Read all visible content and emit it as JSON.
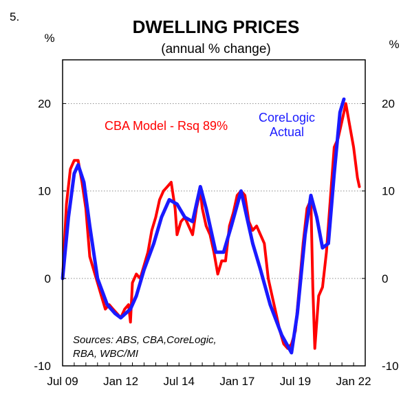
{
  "figure_number": "5.",
  "chart_data": {
    "type": "line",
    "title": "DWELLING PRICES",
    "subtitle": "(annual % change)",
    "ylabel_left": "%",
    "ylabel_right": "%",
    "x_range": [
      "2009-07",
      "2022-07"
    ],
    "ylim": [
      -10,
      25
    ],
    "y_ticks": [
      -10,
      0,
      10,
      20
    ],
    "x_ticks": [
      {
        "date": "2009-07",
        "label": "Jul 09"
      },
      {
        "date": "2012-01",
        "label": "Jan 12"
      },
      {
        "date": "2014-07",
        "label": "Jul 14"
      },
      {
        "date": "2017-01",
        "label": "Jan 17"
      },
      {
        "date": "2019-07",
        "label": "Jul 19"
      },
      {
        "date": "2022-01",
        "label": "Jan 22"
      }
    ],
    "grid": "horizontal dotted",
    "source_note_lines": [
      "Sources: ABS, CBA,CoreLogic,",
      "RBA, WBC/MI"
    ],
    "series": [
      {
        "name": "CBA Model - Rsq 89%",
        "label_lines": [
          "CBA Model - Rsq 89%"
        ],
        "color": "#ff0000",
        "points": [
          [
            "2009-07",
            0.0
          ],
          [
            "2009-09",
            8.5
          ],
          [
            "2009-11",
            12.5
          ],
          [
            "2010-01",
            13.5
          ],
          [
            "2010-03",
            13.5
          ],
          [
            "2010-05",
            11.0
          ],
          [
            "2010-07",
            8.0
          ],
          [
            "2010-09",
            2.5
          ],
          [
            "2010-11",
            1.0
          ],
          [
            "2011-01",
            -0.5
          ],
          [
            "2011-03",
            -2.0
          ],
          [
            "2011-05",
            -3.5
          ],
          [
            "2011-07",
            -3.0
          ],
          [
            "2011-09",
            -3.5
          ],
          [
            "2011-11",
            -4.0
          ],
          [
            "2012-01",
            -4.5
          ],
          [
            "2012-03",
            -3.5
          ],
          [
            "2012-05",
            -3.0
          ],
          [
            "2012-06",
            -5.0
          ],
          [
            "2012-07",
            -0.5
          ],
          [
            "2012-09",
            0.5
          ],
          [
            "2012-11",
            0.0
          ],
          [
            "2013-01",
            1.5
          ],
          [
            "2013-03",
            3.0
          ],
          [
            "2013-05",
            5.5
          ],
          [
            "2013-07",
            7.0
          ],
          [
            "2013-09",
            9.0
          ],
          [
            "2013-11",
            10.0
          ],
          [
            "2014-01",
            10.5
          ],
          [
            "2014-03",
            11.0
          ],
          [
            "2014-05",
            8.0
          ],
          [
            "2014-06",
            5.0
          ],
          [
            "2014-08",
            6.5
          ],
          [
            "2014-10",
            7.0
          ],
          [
            "2014-12",
            6.0
          ],
          [
            "2015-02",
            5.0
          ],
          [
            "2015-04",
            8.0
          ],
          [
            "2015-06",
            10.0
          ],
          [
            "2015-07",
            8.0
          ],
          [
            "2015-09",
            6.0
          ],
          [
            "2015-11",
            5.0
          ],
          [
            "2016-01",
            3.0
          ],
          [
            "2016-03",
            0.5
          ],
          [
            "2016-05",
            2.0
          ],
          [
            "2016-07",
            2.0
          ],
          [
            "2016-09",
            6.0
          ],
          [
            "2016-11",
            7.5
          ],
          [
            "2017-01",
            9.5
          ],
          [
            "2017-03",
            10.0
          ],
          [
            "2017-05",
            9.5
          ],
          [
            "2017-07",
            6.5
          ],
          [
            "2017-09",
            5.5
          ],
          [
            "2017-11",
            6.0
          ],
          [
            "2018-01",
            5.0
          ],
          [
            "2018-03",
            4.0
          ],
          [
            "2018-05",
            0.0
          ],
          [
            "2018-07",
            -2.0
          ],
          [
            "2018-09",
            -4.0
          ],
          [
            "2018-11",
            -6.0
          ],
          [
            "2019-01",
            -7.5
          ],
          [
            "2019-03",
            -8.0
          ],
          [
            "2019-05",
            -7.5
          ],
          [
            "2019-07",
            -6.0
          ],
          [
            "2019-09",
            -1.0
          ],
          [
            "2019-11",
            4.0
          ],
          [
            "2020-01",
            8.0
          ],
          [
            "2020-03",
            9.0
          ],
          [
            "2020-04",
            -1.0
          ],
          [
            "2020-05",
            -8.0
          ],
          [
            "2020-07",
            -2.0
          ],
          [
            "2020-09",
            -1.0
          ],
          [
            "2020-11",
            3.0
          ],
          [
            "2021-01",
            9.0
          ],
          [
            "2021-03",
            15.0
          ],
          [
            "2021-05",
            16.0
          ],
          [
            "2021-07",
            18.0
          ],
          [
            "2021-09",
            20.0
          ],
          [
            "2021-11",
            17.5
          ],
          [
            "2022-01",
            15.0
          ],
          [
            "2022-03",
            11.5
          ],
          [
            "2022-04",
            10.5
          ]
        ]
      },
      {
        "name": "CoreLogic Actual",
        "label_lines": [
          "CoreLogic",
          "Actual"
        ],
        "color": "#1a1aff",
        "points": [
          [
            "2009-07",
            0.0
          ],
          [
            "2009-10",
            7.0
          ],
          [
            "2010-01",
            12.0
          ],
          [
            "2010-03",
            13.0
          ],
          [
            "2010-06",
            11.0
          ],
          [
            "2010-09",
            6.0
          ],
          [
            "2011-01",
            0.0
          ],
          [
            "2011-06",
            -3.0
          ],
          [
            "2011-10",
            -4.0
          ],
          [
            "2012-01",
            -4.5
          ],
          [
            "2012-06",
            -3.5
          ],
          [
            "2012-09",
            -2.0
          ],
          [
            "2013-01",
            1.0
          ],
          [
            "2013-06",
            4.0
          ],
          [
            "2013-10",
            7.0
          ],
          [
            "2014-02",
            9.0
          ],
          [
            "2014-06",
            8.5
          ],
          [
            "2014-10",
            7.0
          ],
          [
            "2015-02",
            6.5
          ],
          [
            "2015-06",
            10.5
          ],
          [
            "2015-09",
            8.0
          ],
          [
            "2016-02",
            3.0
          ],
          [
            "2016-06",
            3.0
          ],
          [
            "2016-10",
            6.0
          ],
          [
            "2017-03",
            10.0
          ],
          [
            "2017-06",
            7.0
          ],
          [
            "2017-09",
            4.0
          ],
          [
            "2018-01",
            1.0
          ],
          [
            "2018-06",
            -3.0
          ],
          [
            "2018-12",
            -6.5
          ],
          [
            "2019-05",
            -8.5
          ],
          [
            "2019-08",
            -4.0
          ],
          [
            "2019-12",
            5.0
          ],
          [
            "2020-03",
            9.5
          ],
          [
            "2020-06",
            7.0
          ],
          [
            "2020-09",
            3.5
          ],
          [
            "2020-12",
            4.0
          ],
          [
            "2021-03",
            12.0
          ],
          [
            "2021-06",
            19.0
          ],
          [
            "2021-08",
            20.5
          ]
        ]
      }
    ]
  }
}
